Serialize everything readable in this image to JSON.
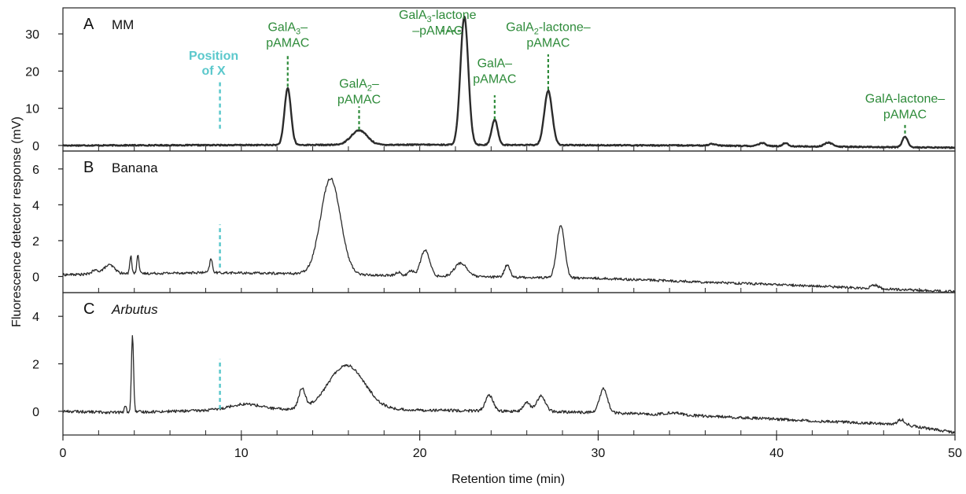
{
  "figure": {
    "xlabel": "Retention time (min)",
    "ylabel": "Fluorescence detector response (mV)"
  },
  "colors": {
    "trace": "#2b2b2b",
    "peak_label": "#2e8b3a",
    "marker": "#5bc8cc"
  },
  "chart_data": [
    {
      "panel": "A",
      "title": "MM",
      "type": "line",
      "xlim": [
        0,
        50
      ],
      "ylim": [
        -1.5,
        37
      ],
      "yticks": [
        0,
        10,
        20,
        30
      ],
      "baseline": [
        [
          0,
          0
        ],
        [
          20,
          0.2
        ],
        [
          35,
          0
        ],
        [
          50,
          -0.6
        ]
      ],
      "peaks": [
        {
          "x": 12.6,
          "y": 15.3,
          "w": 0.18
        },
        {
          "x": 16.6,
          "y": 3.9,
          "w": 0.45
        },
        {
          "x": 22.5,
          "y": 34.5,
          "w": 0.22
        },
        {
          "x": 24.2,
          "y": 6.8,
          "w": 0.17
        },
        {
          "x": 27.2,
          "y": 14.6,
          "w": 0.22
        },
        {
          "x": 36.4,
          "y": 0.5,
          "w": 0.2
        },
        {
          "x": 39.2,
          "y": 0.8,
          "w": 0.2
        },
        {
          "x": 40.5,
          "y": 0.9,
          "w": 0.15
        },
        {
          "x": 42.9,
          "y": 1.1,
          "w": 0.22
        },
        {
          "x": 47.2,
          "y": 2.9,
          "w": 0.15
        }
      ],
      "noise": 0.15,
      "annotations": [
        {
          "text": "GalA",
          "sub": "3",
          "rest": "–",
          "line2": "pAMAC",
          "x": 12.6,
          "top": 30.8,
          "leader": [
            15.8,
            24.5
          ]
        },
        {
          "text": "GalA",
          "sub": "2",
          "rest": "–",
          "line2": "pAMAC",
          "x": 16.6,
          "top": 15.5,
          "leader": [
            4.2,
            10.5
          ]
        },
        {
          "text": "GalA",
          "sub": "3",
          "rest": "-lactone",
          "line2": "–pAMAC",
          "x": 21.0,
          "top": 34.0,
          "leader_h": [
            30.8,
            21.2,
            22.4
          ]
        },
        {
          "text": "GalA–",
          "sub": "",
          "rest": "",
          "line2": "pAMAC",
          "x": 24.2,
          "top": 21.0,
          "leader": [
            7.0,
            13.5
          ]
        },
        {
          "text": "GalA",
          "sub": "2",
          "rest": "-lactone–",
          "line2": "pAMAC",
          "x": 27.2,
          "top": 30.8,
          "leader": [
            15.0,
            24.5
          ]
        },
        {
          "text": "GalA-lactone–",
          "sub": "",
          "rest": "",
          "line2": "pAMAC",
          "x": 47.2,
          "top": 11.5,
          "leader": [
            3.2,
            5.5
          ]
        }
      ],
      "marker": {
        "text": "Position",
        "line2": "of X",
        "x": 8.8,
        "y0": 4.5,
        "y1": 17.0
      }
    },
    {
      "panel": "B",
      "title": "Banana",
      "type": "line",
      "xlim": [
        0,
        50
      ],
      "ylim": [
        -0.9,
        7.0
      ],
      "yticks": [
        0,
        2,
        4,
        6
      ],
      "baseline": [
        [
          0,
          0.1
        ],
        [
          8,
          0.22
        ],
        [
          14,
          0.15
        ],
        [
          20,
          0.02
        ],
        [
          30,
          -0.1
        ],
        [
          40,
          -0.45
        ],
        [
          50,
          -0.85
        ]
      ],
      "peaks": [
        {
          "x": 1.8,
          "y": 0.2,
          "w": 0.2
        },
        {
          "x": 2.6,
          "y": 0.5,
          "w": 0.3
        },
        {
          "x": 3.8,
          "y": 1.0,
          "w": 0.06
        },
        {
          "x": 4.2,
          "y": 1.1,
          "w": 0.06
        },
        {
          "x": 8.3,
          "y": 0.75,
          "w": 0.08
        },
        {
          "x": 15.0,
          "y": 5.35,
          "w": 0.55
        },
        {
          "x": 18.8,
          "y": 0.2,
          "w": 0.15
        },
        {
          "x": 19.5,
          "y": 0.3,
          "w": 0.15
        },
        {
          "x": 20.3,
          "y": 1.45,
          "w": 0.25
        },
        {
          "x": 22.3,
          "y": 0.75,
          "w": 0.35
        },
        {
          "x": 24.9,
          "y": 0.7,
          "w": 0.15
        },
        {
          "x": 27.9,
          "y": 2.95,
          "w": 0.22
        },
        {
          "x": 45.5,
          "y": 0.2,
          "w": 0.2
        }
      ],
      "noise": 0.07,
      "marker": {
        "x": 8.8,
        "y0": 0.5,
        "y1": 2.9
      }
    },
    {
      "panel": "C",
      "title": "Arbutus",
      "type": "line",
      "xlim": [
        0,
        50
      ],
      "ylim": [
        -1.0,
        5.0
      ],
      "yticks": [
        0,
        2,
        4
      ],
      "baseline": [
        [
          0,
          0.0
        ],
        [
          3,
          -0.05
        ],
        [
          8,
          0.03
        ],
        [
          15,
          0.1
        ],
        [
          20,
          0.05
        ],
        [
          30,
          -0.05
        ],
        [
          36,
          -0.2
        ],
        [
          42,
          -0.4
        ],
        [
          47,
          -0.55
        ],
        [
          50,
          -0.9
        ]
      ],
      "peaks": [
        {
          "x": 3.5,
          "y": 0.3,
          "w": 0.05
        },
        {
          "x": 3.9,
          "y": 3.25,
          "w": 0.06
        },
        {
          "x": 10.2,
          "y": 0.25,
          "w": 0.9
        },
        {
          "x": 13.4,
          "y": 0.8,
          "w": 0.18
        },
        {
          "x": 15.9,
          "y": 1.85,
          "w": 1.0
        },
        {
          "x": 23.9,
          "y": 0.65,
          "w": 0.22
        },
        {
          "x": 26.0,
          "y": 0.4,
          "w": 0.18
        },
        {
          "x": 26.8,
          "y": 0.65,
          "w": 0.25
        },
        {
          "x": 30.3,
          "y": 1.0,
          "w": 0.22
        },
        {
          "x": 34.2,
          "y": 0.1,
          "w": 0.4
        },
        {
          "x": 47.0,
          "y": 0.2,
          "w": 0.2
        }
      ],
      "noise": 0.06,
      "marker": {
        "x": 8.8,
        "y0": 0.1,
        "y1": 2.2
      }
    }
  ],
  "xaxis": {
    "ticks": [
      0,
      10,
      20,
      30,
      40,
      50
    ],
    "minor_step": 2
  }
}
